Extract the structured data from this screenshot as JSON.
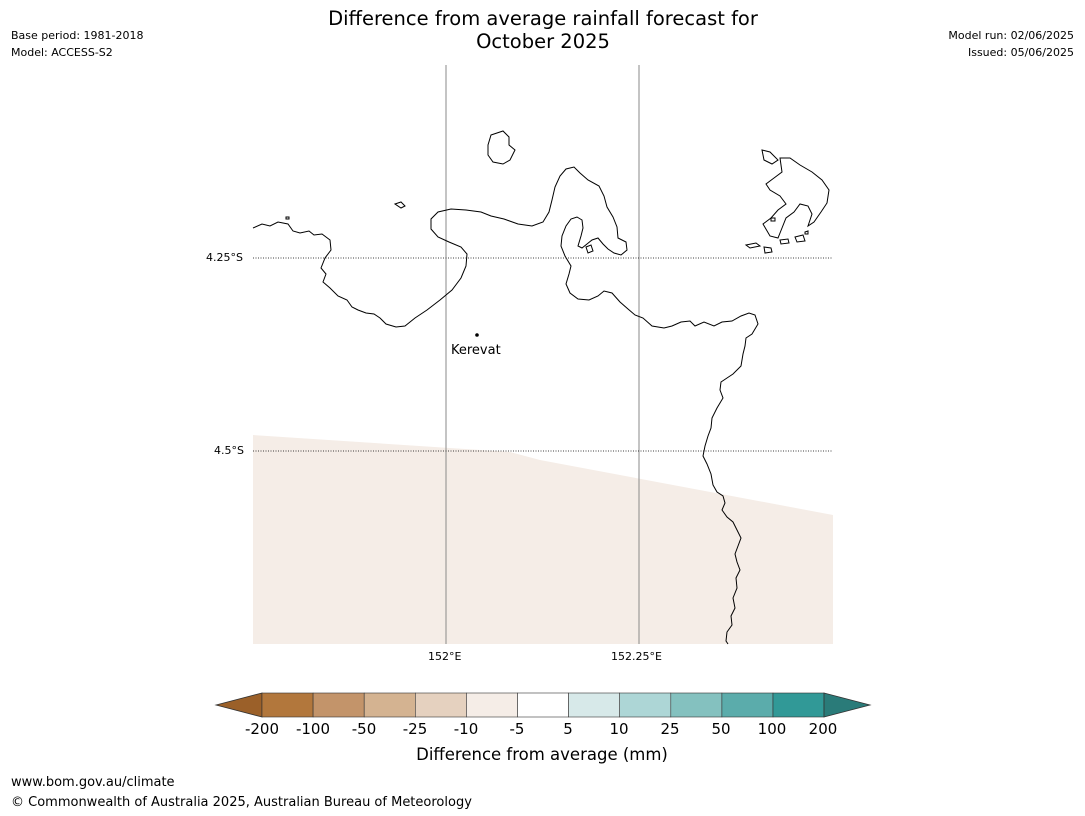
{
  "header": {
    "base_period": "Base period: 1981-2018",
    "model": "Model: ACCESS-S2",
    "title_line1": "Difference from average rainfall forecast for",
    "title_line2": "October 2025",
    "model_run": "Model run: 02/06/2025",
    "issued": "Issued: 05/06/2025"
  },
  "map": {
    "lat_labels": [
      "4.25°S",
      "4.5°S"
    ],
    "lon_labels": [
      "152°E",
      "152.25°E"
    ],
    "place": "Kerevat",
    "shaded_category": "-10 to -5",
    "shade_color": "#f5ede7"
  },
  "colorbar": {
    "ticks": [
      "-200",
      "-100",
      "-50",
      "-25",
      "-10",
      "-5",
      "5",
      "10",
      "25",
      "50",
      "100",
      "200"
    ],
    "colors": [
      "#9b6029",
      "#b2773c",
      "#c3946a",
      "#d4b391",
      "#e5d1bf",
      "#f5ede7",
      "#ffffff",
      "#d7e9e9",
      "#add6d6",
      "#84c1bf",
      "#5bacab",
      "#319997",
      "#2a7b79"
    ],
    "label": "Difference from average (mm)"
  },
  "footer": {
    "url": "www.bom.gov.au/climate",
    "copyright": "© Commonwealth of Australia 2025, Australian Bureau of Meteorology"
  }
}
